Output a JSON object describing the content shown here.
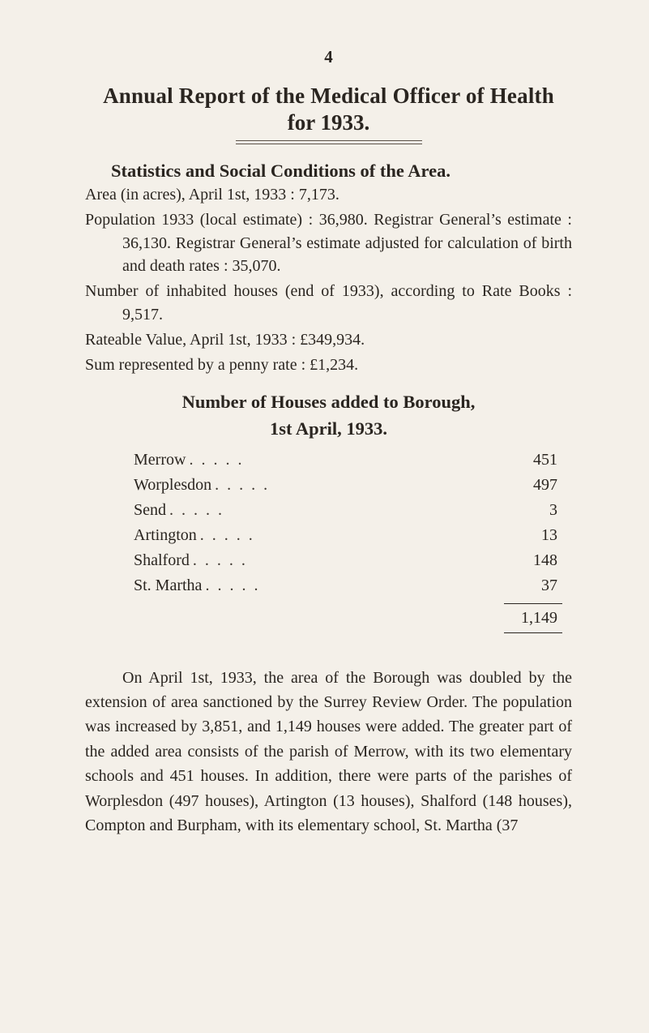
{
  "page_number": "4",
  "title": {
    "line1": "Annual Report of the Medical Officer of Health",
    "line2": "for 1933."
  },
  "section1_heading": "Statistics and Social Conditions of the Area.",
  "stats": {
    "area_line": "Area (in acres), April 1st, 1933 : 7,173.",
    "population_line": "Population 1933 (local estimate) : 36,980. Registrar General’s estimate : 36,130. Registrar General’s estimate adjusted for calculation of birth and death rates : 35,070.",
    "houses_line": "Number of inhabited houses (end of 1933), according to Rate Books : 9,517.",
    "rateable_line": "Rateable Value, April 1st, 1933 : £349,934.",
    "penny_rate_line": "Sum represented by a penny rate : £1,234."
  },
  "houses_section": {
    "heading_line1": "Number of Houses added to Borough,",
    "heading_line2": "1st April, 1933.",
    "rows": [
      {
        "name": "Merrow",
        "value": "451"
      },
      {
        "name": "Worplesdon",
        "value": "497"
      },
      {
        "name": "Send",
        "value": "3"
      },
      {
        "name": "Artington",
        "value": "13"
      },
      {
        "name": "Shalford",
        "value": "148"
      },
      {
        "name": "St. Martha",
        "value": "37"
      }
    ],
    "total": "1,149"
  },
  "closing_paragraph": "On April 1st, 1933, the area of the Borough was doubled by the extension of area sanctioned by the Surrey Review Order. The population was increased by 3,851, and 1,149 houses were added. The greater part of the added area consists of the parish of Merrow, with its two elementary schools and 451 houses. In addition, there were parts of the parishes of Worplesdon (497 houses), Artington (13 houses), Shalford (148 houses), Compton and Burpham, with its elementary school, St. Martha (37",
  "colors": {
    "background": "#f4f0e9",
    "text": "#2a2520",
    "rule": "#5a5148"
  },
  "typography": {
    "body_fontsize_pt": 15,
    "heading_fontsize_pt": 17,
    "title_fontsize_pt": 20,
    "font_family": "Century Schoolbook / serif"
  }
}
